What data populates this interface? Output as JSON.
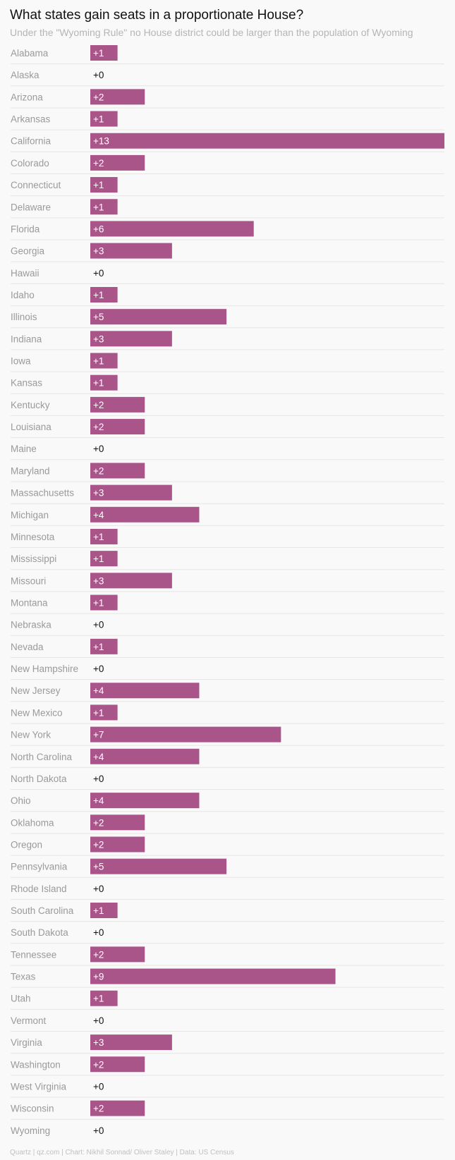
{
  "title": "What states gain seats in a proportionate House?",
  "subtitle": "Under the \"Wyoming Rule\" no House district could be larger than the population of Wyoming",
  "footer": "Quartz | qz.com | Chart: Nikhil Sonnad/ Oliver Staley | Data: US Census",
  "colors": {
    "bar": "#a9558a",
    "bar_label": "#ffffff",
    "zero_label": "#111111",
    "category_label": "#9a9a9a",
    "divider": "#e6e6e6"
  },
  "chart_data": {
    "type": "bar",
    "orientation": "horizontal",
    "categories": [
      "Alabama",
      "Alaska",
      "Arizona",
      "Arkansas",
      "California",
      "Colorado",
      "Connecticut",
      "Delaware",
      "Florida",
      "Georgia",
      "Hawaii",
      "Idaho",
      "Illinois",
      "Indiana",
      "Iowa",
      "Kansas",
      "Kentucky",
      "Louisiana",
      "Maine",
      "Maryland",
      "Massachusetts",
      "Michigan",
      "Minnesota",
      "Mississippi",
      "Missouri",
      "Montana",
      "Nebraska",
      "Nevada",
      "New Hampshire",
      "New Jersey",
      "New Mexico",
      "New York",
      "North Carolina",
      "North Dakota",
      "Ohio",
      "Oklahoma",
      "Oregon",
      "Pennsylvania",
      "Rhode Island",
      "South Carolina",
      "South Dakota",
      "Tennessee",
      "Texas",
      "Utah",
      "Vermont",
      "Virginia",
      "Washington",
      "West Virginia",
      "Wisconsin",
      "Wyoming"
    ],
    "values": [
      1,
      0,
      2,
      1,
      13,
      2,
      1,
      1,
      6,
      3,
      0,
      1,
      5,
      3,
      1,
      1,
      2,
      2,
      0,
      2,
      3,
      4,
      1,
      1,
      3,
      1,
      0,
      1,
      0,
      4,
      1,
      7,
      4,
      0,
      4,
      2,
      2,
      5,
      0,
      1,
      0,
      2,
      9,
      1,
      0,
      3,
      2,
      0,
      2,
      0
    ],
    "labels": [
      "+1",
      "+0",
      "+2",
      "+1",
      "+13",
      "+2",
      "+1",
      "+1",
      "+6",
      "+3",
      "+0",
      "+1",
      "+5",
      "+3",
      "+1",
      "+1",
      "+2",
      "+2",
      "+0",
      "+2",
      "+3",
      "+4",
      "+1",
      "+1",
      "+3",
      "+1",
      "+0",
      "+1",
      "+0",
      "+4",
      "+1",
      "+7",
      "+4",
      "+0",
      "+4",
      "+2",
      "+2",
      "+5",
      "+0",
      "+1",
      "+0",
      "+2",
      "+9",
      "+1",
      "+0",
      "+3",
      "+2",
      "+0",
      "+2",
      "+0"
    ],
    "xlim": [
      0,
      13
    ],
    "grid": false,
    "legend": "none"
  }
}
